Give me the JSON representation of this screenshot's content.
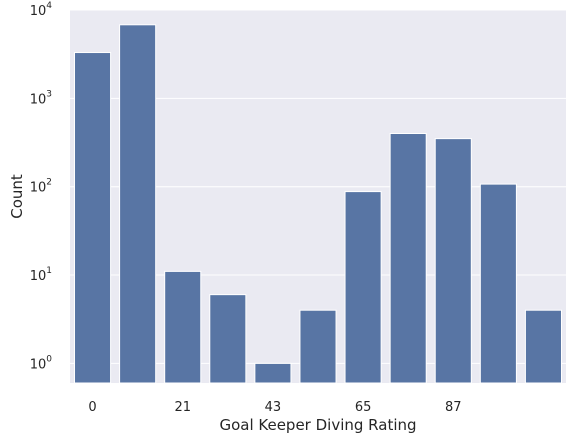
{
  "chart_data": {
    "type": "bar",
    "title": "",
    "xlabel": "Goal Keeper Diving Rating",
    "ylabel": "Count",
    "yscale": "log",
    "ylim": [
      0.6,
      10000
    ],
    "grid": true,
    "categories": [
      "0",
      "",
      "21",
      "",
      "43",
      "",
      "65",
      "",
      "87",
      "",
      ""
    ],
    "x_tick_labels": [
      "0",
      "21",
      "43",
      "65",
      "87"
    ],
    "y_ticks": [
      {
        "base": "10",
        "exp": "0",
        "value": 1
      },
      {
        "base": "10",
        "exp": "1",
        "value": 10
      },
      {
        "base": "10",
        "exp": "2",
        "value": 100
      },
      {
        "base": "10",
        "exp": "3",
        "value": 1000
      },
      {
        "base": "10",
        "exp": "4",
        "value": 10000
      }
    ],
    "values": [
      3300,
      6800,
      11,
      6,
      1,
      4,
      88,
      400,
      350,
      107,
      4
    ],
    "colors": {
      "bar": "#5875a4",
      "background": "#eaeaf2",
      "grid": "#ffffff",
      "text": "#262626"
    }
  }
}
